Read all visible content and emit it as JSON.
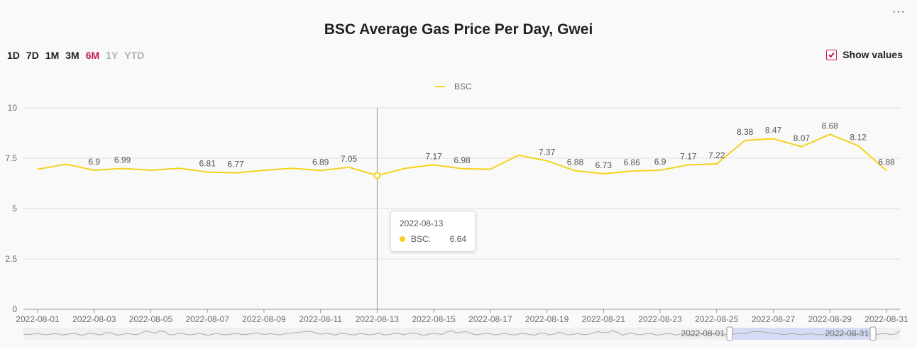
{
  "menu": {
    "icon": "more-horizontal-icon",
    "label": "···"
  },
  "ranges": [
    {
      "label": "1D",
      "state": "normal"
    },
    {
      "label": "7D",
      "state": "normal"
    },
    {
      "label": "1M",
      "state": "normal"
    },
    {
      "label": "3M",
      "state": "normal"
    },
    {
      "label": "6M",
      "state": "active"
    },
    {
      "label": "1Y",
      "state": "disabled"
    },
    {
      "label": "YTD",
      "state": "disabled"
    }
  ],
  "show_values": {
    "label": "Show values",
    "checked": true
  },
  "tooltip": {
    "date": "2022-08-13",
    "series": "BSC:",
    "value": "6.64"
  },
  "colors": {
    "series": "#f5d21b",
    "accent": "#c2185b"
  },
  "chart_data": {
    "type": "line",
    "title": "BSC Average Gas Price Per Day, Gwei",
    "x": [
      "2022-08-01",
      "2022-08-02",
      "2022-08-03",
      "2022-08-04",
      "2022-08-05",
      "2022-08-06",
      "2022-08-07",
      "2022-08-08",
      "2022-08-09",
      "2022-08-10",
      "2022-08-11",
      "2022-08-12",
      "2022-08-13",
      "2022-08-14",
      "2022-08-15",
      "2022-08-16",
      "2022-08-17",
      "2022-08-18",
      "2022-08-19",
      "2022-08-20",
      "2022-08-21",
      "2022-08-22",
      "2022-08-23",
      "2022-08-24",
      "2022-08-25",
      "2022-08-26",
      "2022-08-27",
      "2022-08-28",
      "2022-08-29",
      "2022-08-30",
      "2022-08-31"
    ],
    "x_tick_labels": [
      "2022-08-01",
      "2022-08-03",
      "2022-08-05",
      "2022-08-07",
      "2022-08-09",
      "2022-08-11",
      "2022-08-13",
      "2022-08-15",
      "2022-08-17",
      "2022-08-19",
      "2022-08-21",
      "2022-08-23",
      "2022-08-25",
      "2022-08-27",
      "2022-08-29",
      "2022-08-31"
    ],
    "series": [
      {
        "name": "BSC",
        "values": [
          6.95,
          7.2,
          6.9,
          6.99,
          6.9,
          7.0,
          6.81,
          6.77,
          6.9,
          7.0,
          6.89,
          7.05,
          6.64,
          7.0,
          7.17,
          6.98,
          6.95,
          7.65,
          7.37,
          6.88,
          6.73,
          6.86,
          6.9,
          7.17,
          7.22,
          8.38,
          8.47,
          8.07,
          8.68,
          8.12,
          6.88
        ],
        "value_labels": [
          "",
          "",
          "6.9",
          "6.99",
          "",
          "",
          "6.81",
          "6.77",
          "",
          "",
          "6.89",
          "7.05",
          "",
          "",
          "7.17",
          "6.98",
          "",
          "",
          "7.37",
          "6.88",
          "6.73",
          "6.86",
          "6.9",
          "7.17",
          "7.22",
          "8.38",
          "8.47",
          "8.07",
          "8.68",
          "8.12",
          "6.88"
        ]
      }
    ],
    "y_ticks": [
      "0",
      "2.5",
      "5",
      "7.5",
      "10"
    ],
    "ylim": [
      0,
      10
    ],
    "grid": true,
    "legend": "top-center",
    "highlight_index": 12,
    "zoom": {
      "start_label": "2022-08-01",
      "end_label": "2022-08-31"
    }
  }
}
